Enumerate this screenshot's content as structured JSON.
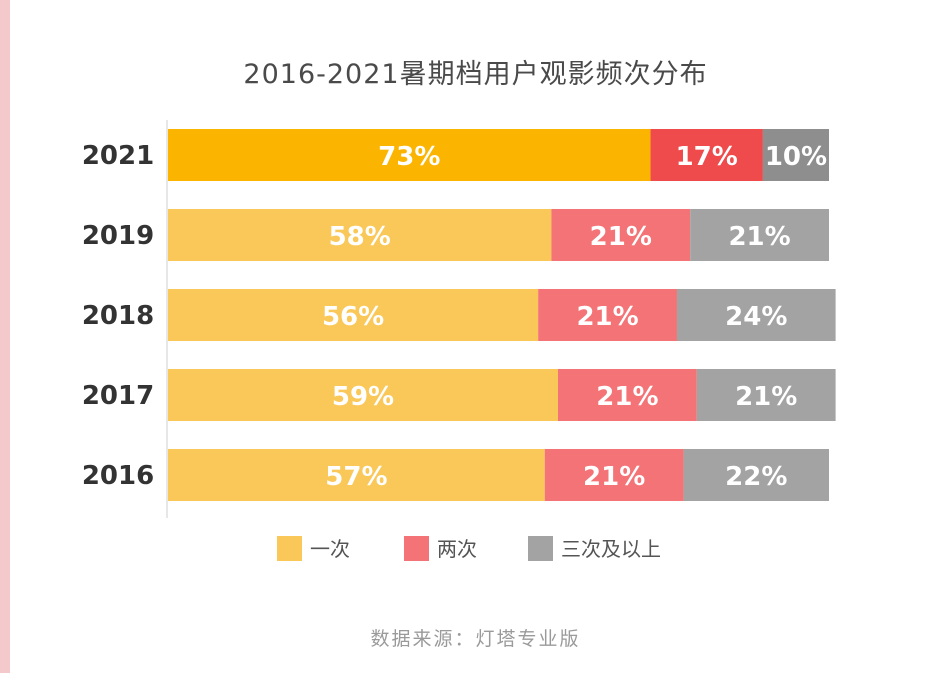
{
  "chart_data": {
    "type": "bar",
    "orientation": "horizontal-stacked-100",
    "title": "2016-2021暑期档用户观影频次分布",
    "categories": [
      "2021",
      "2019",
      "2018",
      "2017",
      "2016"
    ],
    "series": [
      {
        "name": "一次",
        "values": [
          73,
          58,
          56,
          59,
          57
        ],
        "color": "#fac858"
      },
      {
        "name": "两次",
        "values": [
          17,
          21,
          21,
          21,
          21
        ],
        "color": "#f37376"
      },
      {
        "name": "三次及以上",
        "values": [
          10,
          21,
          24,
          21,
          22
        ],
        "color": "#a3a3a3"
      }
    ],
    "highlight": {
      "category": "2021",
      "colors": [
        "#fbb400",
        "#ef4a4c",
        "#8e8e8e"
      ]
    },
    "value_suffix": "%",
    "xlim": [
      0,
      100
    ],
    "legend": "bottom",
    "grid": false
  },
  "source_text": "数据来源：灯塔专业版"
}
